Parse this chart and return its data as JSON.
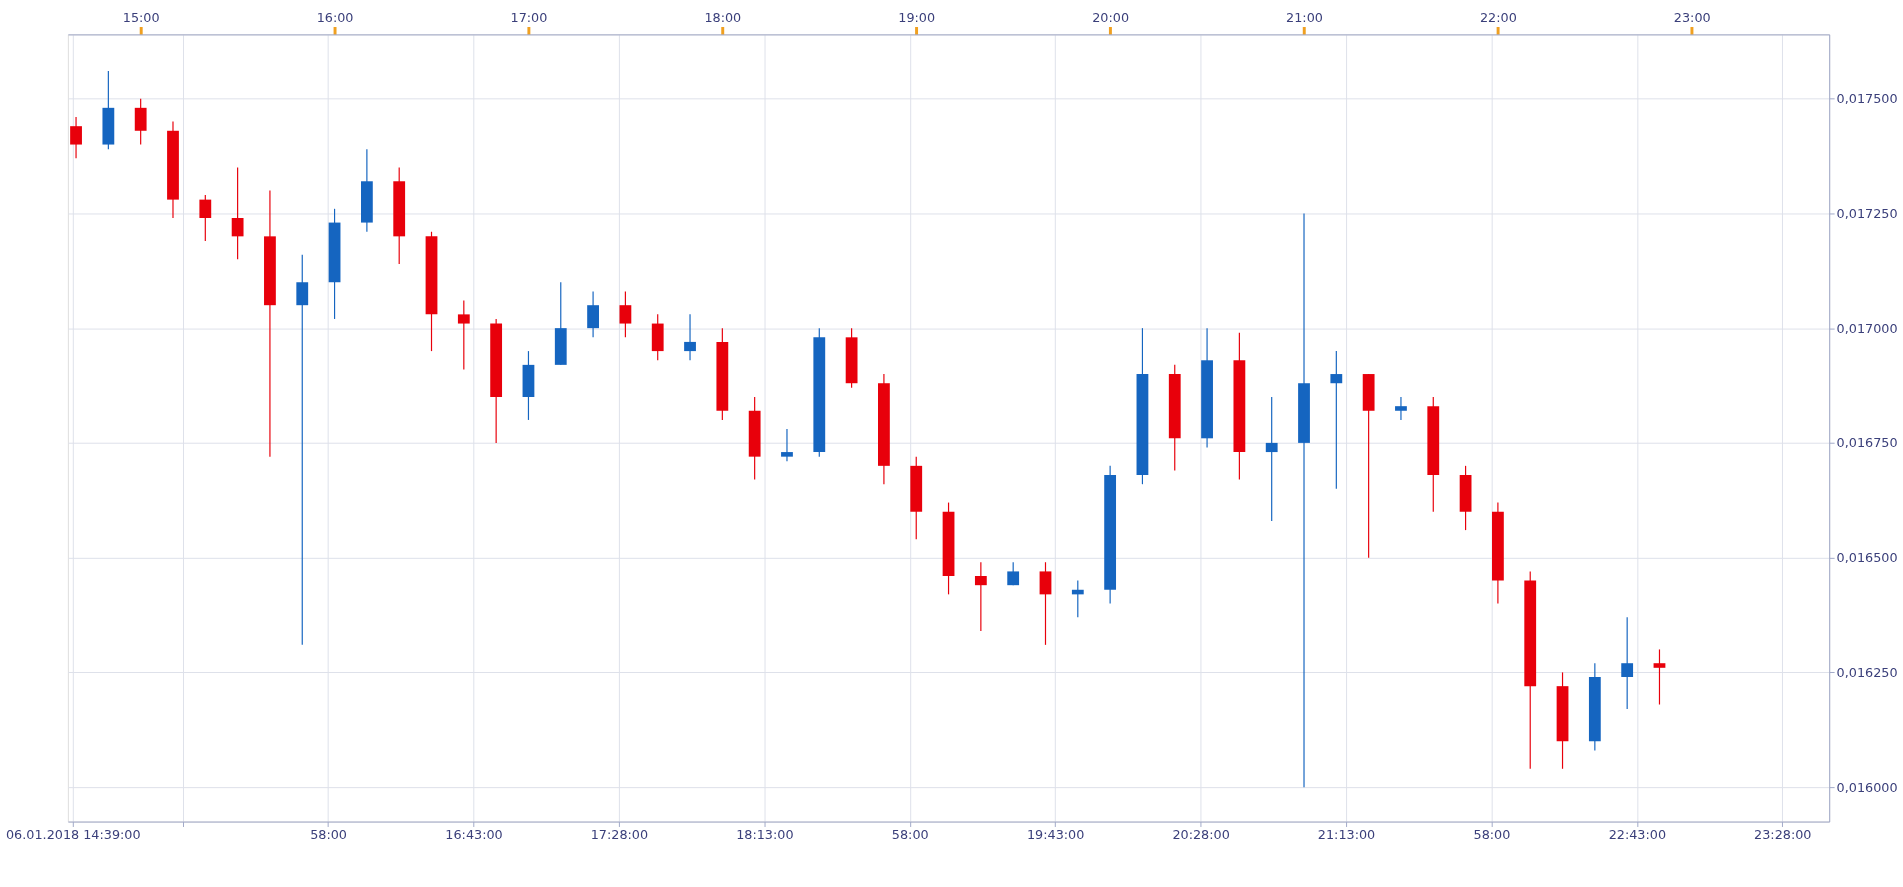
{
  "chart_data": {
    "type": "candlestick",
    "x": [
      "2018-01-06T14:40",
      "2018-01-06T14:50",
      "2018-01-06T15:00",
      "2018-01-06T15:10",
      "2018-01-06T15:20",
      "2018-01-06T15:30",
      "2018-01-06T15:40",
      "2018-01-06T15:50",
      "2018-01-06T16:00",
      "2018-01-06T16:10",
      "2018-01-06T16:20",
      "2018-01-06T16:30",
      "2018-01-06T16:40",
      "2018-01-06T16:50",
      "2018-01-06T17:00",
      "2018-01-06T17:10",
      "2018-01-06T17:20",
      "2018-01-06T17:30",
      "2018-01-06T17:40",
      "2018-01-06T17:50",
      "2018-01-06T18:00",
      "2018-01-06T18:10",
      "2018-01-06T18:20",
      "2018-01-06T18:30",
      "2018-01-06T18:40",
      "2018-01-06T18:50",
      "2018-01-06T19:00",
      "2018-01-06T19:10",
      "2018-01-06T19:20",
      "2018-01-06T19:30",
      "2018-01-06T19:40",
      "2018-01-06T19:50",
      "2018-01-06T20:00",
      "2018-01-06T20:10",
      "2018-01-06T20:20",
      "2018-01-06T20:30",
      "2018-01-06T20:40",
      "2018-01-06T20:50",
      "2018-01-06T21:00",
      "2018-01-06T21:10",
      "2018-01-06T21:20",
      "2018-01-06T21:30",
      "2018-01-06T21:40",
      "2018-01-06T21:50",
      "2018-01-06T22:00",
      "2018-01-06T22:10",
      "2018-01-06T22:20",
      "2018-01-06T22:30",
      "2018-01-06T22:40",
      "2018-01-06T22:50"
    ],
    "ohlc": [
      [
        0.01744,
        0.01746,
        0.01737,
        0.0174
      ],
      [
        0.0174,
        0.01756,
        0.01739,
        0.01748
      ],
      [
        0.01748,
        0.0175,
        0.0174,
        0.01743
      ],
      [
        0.01743,
        0.01745,
        0.01724,
        0.01728
      ],
      [
        0.01728,
        0.01729,
        0.01719,
        0.01724
      ],
      [
        0.01724,
        0.01735,
        0.01715,
        0.0172
      ],
      [
        0.0172,
        0.0173,
        0.01672,
        0.01705
      ],
      [
        0.01705,
        0.01716,
        0.01631,
        0.0171
      ],
      [
        0.0171,
        0.01726,
        0.01702,
        0.01723
      ],
      [
        0.01723,
        0.01739,
        0.01721,
        0.01732
      ],
      [
        0.01732,
        0.01735,
        0.01714,
        0.0172
      ],
      [
        0.0172,
        0.01721,
        0.01695,
        0.01703
      ],
      [
        0.01703,
        0.01706,
        0.01691,
        0.01701
      ],
      [
        0.01701,
        0.01702,
        0.01675,
        0.01685
      ],
      [
        0.01685,
        0.01695,
        0.0168,
        0.01692
      ],
      [
        0.01692,
        0.0171,
        0.01692,
        0.017
      ],
      [
        0.017,
        0.01708,
        0.01698,
        0.01705
      ],
      [
        0.01705,
        0.01708,
        0.01698,
        0.01701
      ],
      [
        0.01701,
        0.01703,
        0.01693,
        0.01695
      ],
      [
        0.01695,
        0.01703,
        0.01693,
        0.01697
      ],
      [
        0.01697,
        0.017,
        0.0168,
        0.01682
      ],
      [
        0.01682,
        0.01685,
        0.01667,
        0.01672
      ],
      [
        0.01672,
        0.01678,
        0.01671,
        0.01673
      ],
      [
        0.01673,
        0.017,
        0.01672,
        0.01698
      ],
      [
        0.01698,
        0.017,
        0.01687,
        0.01688
      ],
      [
        0.01688,
        0.0169,
        0.01666,
        0.0167
      ],
      [
        0.0167,
        0.01672,
        0.01654,
        0.0166
      ],
      [
        0.0166,
        0.01662,
        0.01642,
        0.01646
      ],
      [
        0.01646,
        0.01649,
        0.01634,
        0.01644
      ],
      [
        0.01644,
        0.01649,
        0.01644,
        0.01647
      ],
      [
        0.01647,
        0.01649,
        0.01631,
        0.01642
      ],
      [
        0.01642,
        0.01645,
        0.01637,
        0.01643
      ],
      [
        0.01643,
        0.0167,
        0.0164,
        0.01668
      ],
      [
        0.01668,
        0.017,
        0.01666,
        0.0169
      ],
      [
        0.0169,
        0.01692,
        0.01669,
        0.01676
      ],
      [
        0.01676,
        0.017,
        0.01674,
        0.01693
      ],
      [
        0.01693,
        0.01699,
        0.01667,
        0.01673
      ],
      [
        0.01673,
        0.01685,
        0.01658,
        0.01675
      ],
      [
        0.01675,
        0.01725,
        0.016,
        0.01688
      ],
      [
        0.01688,
        0.01695,
        0.01665,
        0.0169
      ],
      [
        0.0169,
        0.0169,
        0.0165,
        0.01682
      ],
      [
        0.01682,
        0.01685,
        0.0168,
        0.01683
      ],
      [
        0.01683,
        0.01685,
        0.0166,
        0.01668
      ],
      [
        0.01668,
        0.0167,
        0.01656,
        0.0166
      ],
      [
        0.0166,
        0.01662,
        0.0164,
        0.01645
      ],
      [
        0.01645,
        0.01647,
        0.01604,
        0.01622
      ],
      [
        0.01622,
        0.01625,
        0.01604,
        0.0161
      ],
      [
        0.0161,
        0.01627,
        0.01608,
        0.01624
      ],
      [
        0.01624,
        0.01637,
        0.01617,
        0.01627
      ],
      [
        0.01627,
        0.0163,
        0.01618,
        0.01626
      ]
    ],
    "colors": [
      "#e8000b",
      "#1565c0",
      "#e8000b",
      "#e8000b",
      "#e8000b",
      "#e8000b",
      "#e8000b",
      "#1565c0",
      "#1565c0",
      "#1565c0",
      "#e8000b",
      "#e8000b",
      "#e8000b",
      "#e8000b",
      "#1565c0",
      "#1565c0",
      "#1565c0",
      "#e8000b",
      "#e8000b",
      "#1565c0",
      "#e8000b",
      "#e8000b",
      "#1565c0",
      "#1565c0",
      "#e8000b",
      "#e8000b",
      "#e8000b",
      "#e8000b",
      "#e8000b",
      "#1565c0",
      "#e8000b",
      "#1565c0",
      "#1565c0",
      "#1565c0",
      "#e8000b",
      "#1565c0",
      "#e8000b",
      "#1565c0",
      "#1565c0",
      "#1565c0",
      "#e8000b",
      "#1565c0",
      "#e8000b",
      "#e8000b",
      "#e8000b",
      "#e8000b",
      "#e8000b",
      "#1565c0",
      "#1565c0",
      "#e8000b"
    ],
    "xlim": [
      "2018-01-06T14:39",
      "2018-01-06T23:41"
    ],
    "xticks": [
      {
        "value": "2018-01-06T14:39",
        "label": "06.01.2018 14:39:00"
      },
      {
        "value": "2018-01-06T15:13",
        "label": null
      },
      {
        "value": "2018-01-06T15:58",
        "label": "58:00"
      },
      {
        "value": "2018-01-06T16:43",
        "label": "16:43:00"
      },
      {
        "value": "2018-01-06T17:28",
        "label": "17:28:00"
      },
      {
        "value": "2018-01-06T18:13",
        "label": "18:13:00"
      },
      {
        "value": "2018-01-06T18:58",
        "label": "58:00"
      },
      {
        "value": "2018-01-06T19:43",
        "label": "19:43:00"
      },
      {
        "value": "2018-01-06T20:28",
        "label": "20:28:00"
      },
      {
        "value": "2018-01-06T21:13",
        "label": "21:13:00"
      },
      {
        "value": "2018-01-06T21:58",
        "label": "58:00"
      },
      {
        "value": "2018-01-06T22:43",
        "label": "22:43:00"
      },
      {
        "value": "2018-01-06T23:28",
        "label": "23:28:00"
      }
    ],
    "x2lim": [
      "2018-01-06T14:39",
      "2018-01-06T23:41"
    ],
    "x2ticks": [
      {
        "value": "2018-01-06T15:00",
        "label": "15:00"
      },
      {
        "value": "2018-01-06T16:00",
        "label": "16:00"
      },
      {
        "value": "2018-01-06T17:00",
        "label": "17:00"
      },
      {
        "value": "2018-01-06T18:00",
        "label": "18:00"
      },
      {
        "value": "2018-01-06T19:00",
        "label": "19:00"
      },
      {
        "value": "2018-01-06T20:00",
        "label": "20:00"
      },
      {
        "value": "2018-01-06T21:00",
        "label": "21:00"
      },
      {
        "value": "2018-01-06T22:00",
        "label": "22:00"
      },
      {
        "value": "2018-01-06T23:00",
        "label": "23:00"
      }
    ],
    "ylim": [
      0.015925,
      0.01764
    ],
    "yticks": [
      {
        "value": 0.016,
        "label": "0,016000"
      },
      {
        "value": 0.01625,
        "label": "0,016250"
      },
      {
        "value": 0.0165,
        "label": "0,016500"
      },
      {
        "value": 0.01675,
        "label": "0,016750"
      },
      {
        "value": 0.017,
        "label": "0,017000"
      },
      {
        "value": 0.01725,
        "label": "0,017250"
      },
      {
        "value": 0.0175,
        "label": "0,017500"
      }
    ],
    "grid": true
  }
}
